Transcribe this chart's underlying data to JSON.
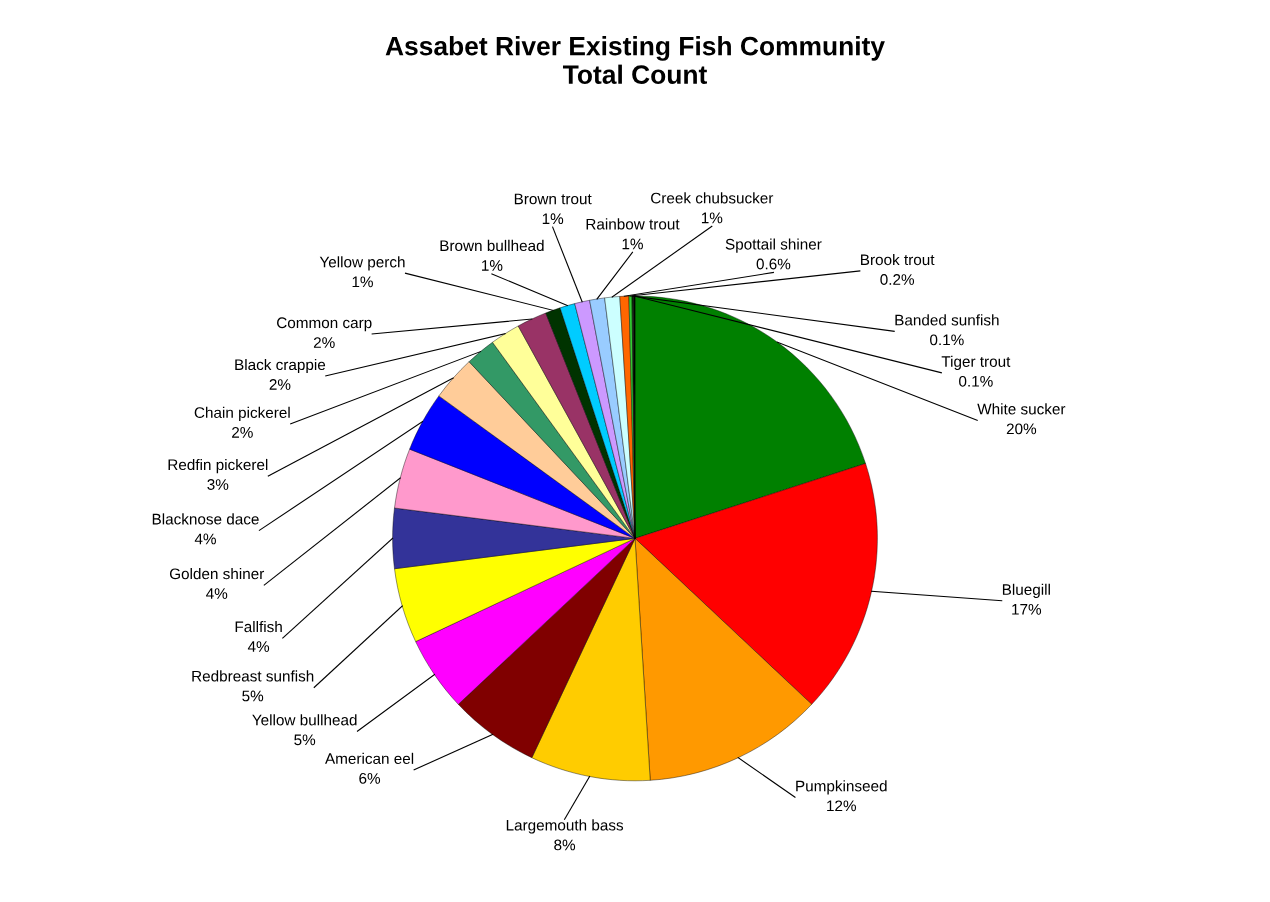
{
  "chart_data": {
    "type": "pie",
    "title": "Assabet River Existing Fish Community\nTotal Count",
    "categories": [
      "White sucker",
      "Bluegill",
      "Pumpkinseed",
      "Largemouth bass",
      "American eel",
      "Yellow bullhead",
      "Redbreast sunfish",
      "Fallfish",
      "Golden shiner",
      "Blacknose dace",
      "Redfin pickerel",
      "Chain pickerel",
      "Black crappie",
      "Common carp",
      "Yellow perch",
      "Brown bullhead",
      "Brown trout",
      "Rainbow trout",
      "Creek chubsucker",
      "Spottail shiner",
      "Brook trout",
      "Banded sunfish",
      "Tiger trout"
    ],
    "values": [
      20,
      17,
      12,
      8,
      6,
      5,
      5,
      4,
      4,
      4,
      3,
      2,
      2,
      2,
      1,
      1,
      1,
      1,
      1,
      0.6,
      0.2,
      0.1,
      0.1
    ],
    "value_labels": [
      "20%",
      "17%",
      "12%",
      "8%",
      "6%",
      "5%",
      "5%",
      "4%",
      "4%",
      "4%",
      "3%",
      "2%",
      "2%",
      "2%",
      "1%",
      "1%",
      "1%",
      "1%",
      "1%",
      "0.6%",
      "0.2%",
      "0.1%",
      "0.1%"
    ],
    "colors": [
      "#008000",
      "#ff0000",
      "#ff9900",
      "#ffcc00",
      "#800000",
      "#ff00ff",
      "#ffff00",
      "#333399",
      "#ff99cc",
      "#0000ff",
      "#ffcc99",
      "#339966",
      "#ffff99",
      "#993366",
      "#003300",
      "#00ccff",
      "#cc99ff",
      "#99ccff",
      "#ccffff",
      "#ff6600",
      "#33cc33",
      "#003300",
      "#000000"
    ],
    "legend": false
  }
}
